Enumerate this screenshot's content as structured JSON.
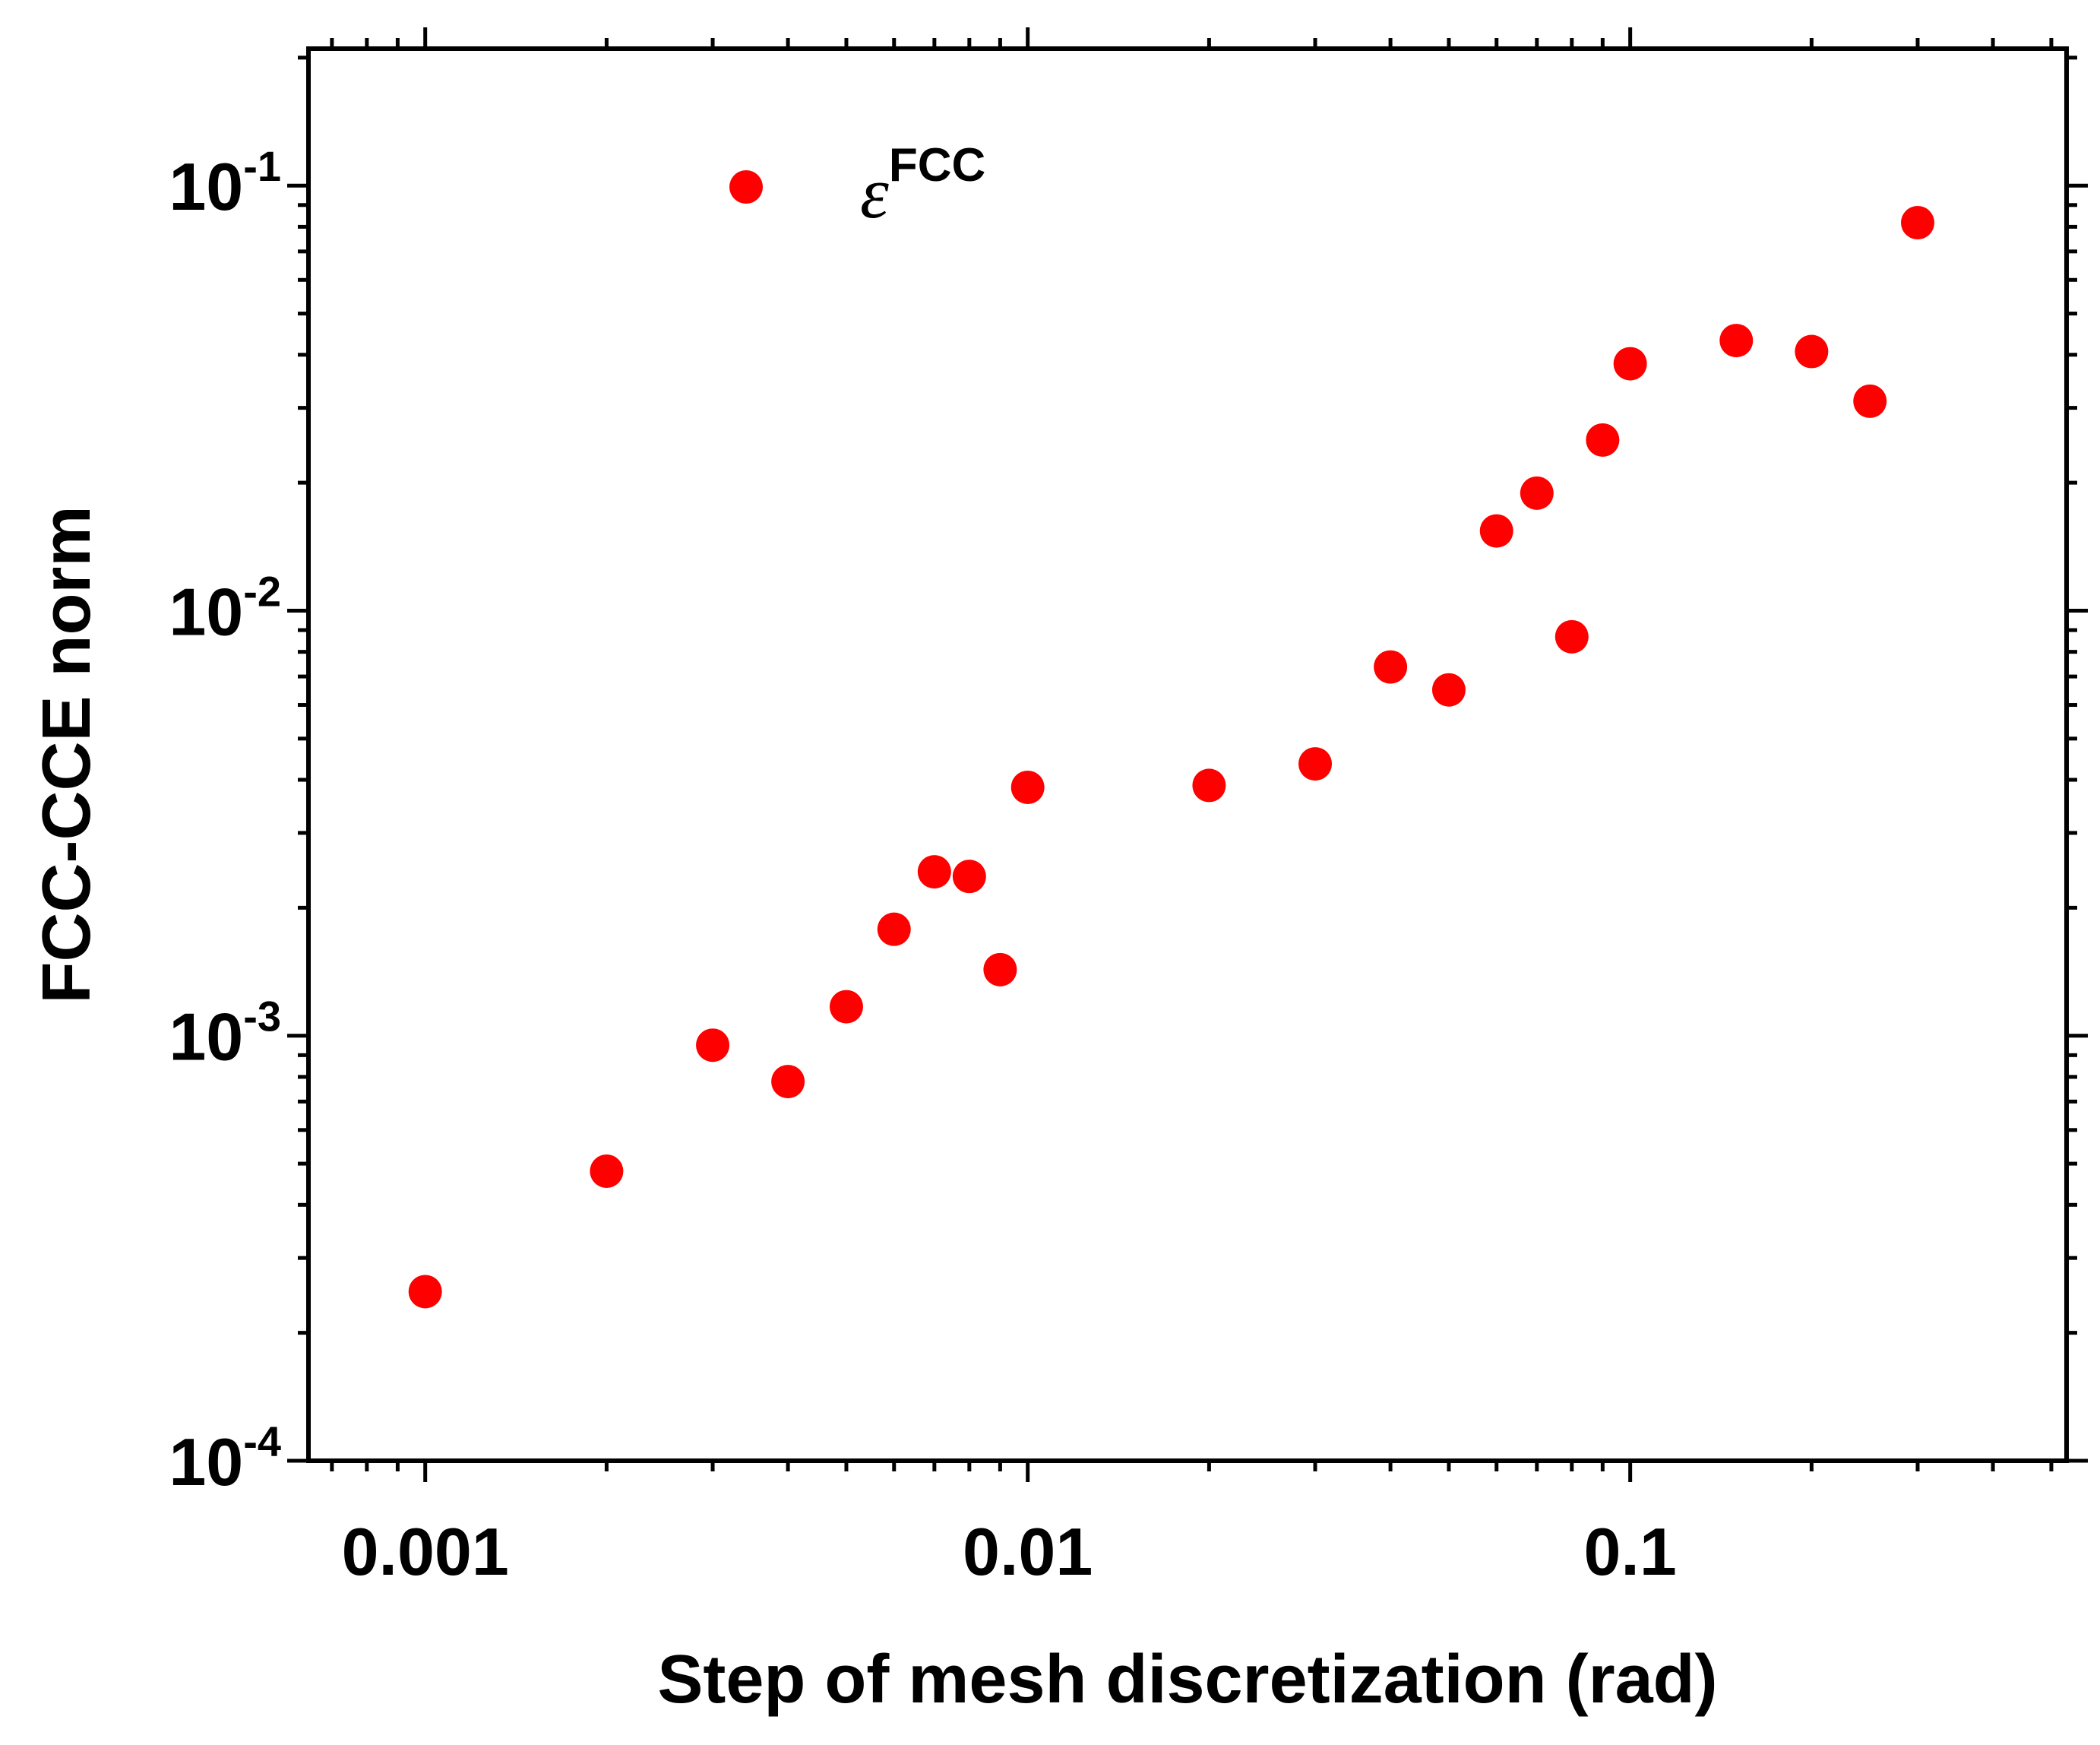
{
  "chart_data": {
    "type": "scatter",
    "title": "",
    "xlabel": "Step of mesh discretization (rad)",
    "ylabel": "FCC-CCE norm",
    "xscale": "log",
    "yscale": "log",
    "xlim": [
      0.00064,
      0.53
    ],
    "ylim": [
      0.0001,
      0.21
    ],
    "marker_color": "#ff0000",
    "legend": {
      "placement": "top-left",
      "entries": [
        {
          "symbol": "ε",
          "superscript": "FCC"
        }
      ]
    },
    "x_ticks": [
      {
        "value": 0.001,
        "label": "0.001"
      },
      {
        "value": 0.01,
        "label": "0.01"
      },
      {
        "value": 0.1,
        "label": "0.1"
      }
    ],
    "y_ticks": [
      {
        "value": 0.0001,
        "base": "10",
        "exp": "-4"
      },
      {
        "value": 0.001,
        "base": "10",
        "exp": "-3"
      },
      {
        "value": 0.01,
        "base": "10",
        "exp": "-2"
      },
      {
        "value": 0.1,
        "base": "10",
        "exp": "-1"
      }
    ],
    "series": [
      {
        "name": "εFCC",
        "points": [
          [
            0.001,
            0.00025
          ],
          [
            0.002,
            0.00048
          ],
          [
            0.003,
            0.00095
          ],
          [
            0.004,
            0.00078
          ],
          [
            0.005,
            0.00117
          ],
          [
            0.006,
            0.00178
          ],
          [
            0.007,
            0.00243
          ],
          [
            0.008,
            0.00237
          ],
          [
            0.009,
            0.00143
          ],
          [
            0.01,
            0.00384
          ],
          [
            0.02,
            0.00388
          ],
          [
            0.03,
            0.00436
          ],
          [
            0.04,
            0.00737
          ],
          [
            0.05,
            0.00651
          ],
          [
            0.06,
            0.0154
          ],
          [
            0.07,
            0.0189
          ],
          [
            0.08,
            0.00868
          ],
          [
            0.09,
            0.0252
          ],
          [
            0.1,
            0.0381
          ],
          [
            0.15,
            0.0432
          ],
          [
            0.2,
            0.0407
          ],
          [
            0.25,
            0.0311
          ],
          [
            0.3,
            0.0818
          ]
        ]
      }
    ]
  }
}
